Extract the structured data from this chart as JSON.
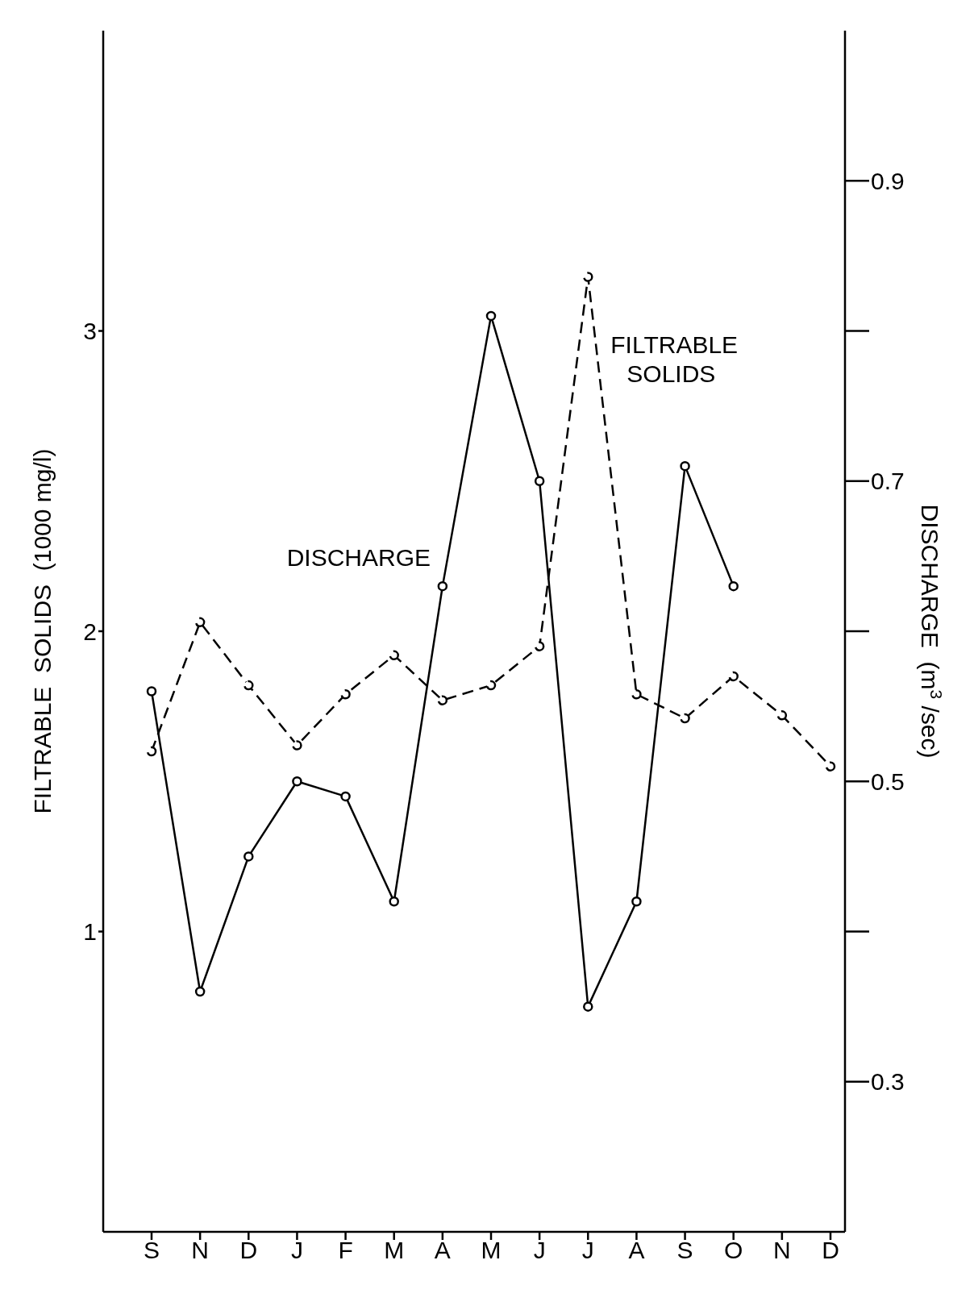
{
  "chart_data": {
    "type": "line",
    "categories": [
      "S",
      "N",
      "D",
      "J",
      "F",
      "M",
      "A",
      "M",
      "J",
      "J",
      "A",
      "S",
      "O",
      "N",
      "D"
    ],
    "ylabel": "FILTRABLE  SOLIDS  (1000 mg/l)",
    "y2label": "DISCHARGE  (m$^{3}$/sec)",
    "ylim": [
      0,
      4
    ],
    "yticks": [
      1,
      2,
      3
    ],
    "y2lim": [
      0.2,
      1.0
    ],
    "y2ticks": [
      0.3,
      {
        "value": 0.4,
        "label": null
      },
      0.5,
      {
        "value": 0.6,
        "label": null
      },
      0.7,
      {
        "value": 0.8,
        "label": null
      },
      0.9
    ],
    "marker": "circle",
    "series": [
      {
        "name": "FILTRABLE SOLIDS",
        "color": "#000000",
        "line_style": "dashed",
        "values": [
          1.6,
          2.03,
          1.82,
          1.62,
          1.79,
          1.92,
          1.77,
          1.82,
          1.95,
          3.18,
          1.79,
          1.71,
          1.85,
          1.72,
          1.55
        ]
      },
      {
        "name": "DISCHARGE",
        "color": "#000000",
        "line_style": "solid",
        "axis": "y2",
        "values": [
          0.56,
          0.36,
          0.45,
          0.5,
          0.49,
          0.42,
          0.63,
          0.81,
          0.7,
          0.35,
          0.42,
          0.71,
          0.63,
          null,
          null
        ]
      }
    ]
  }
}
